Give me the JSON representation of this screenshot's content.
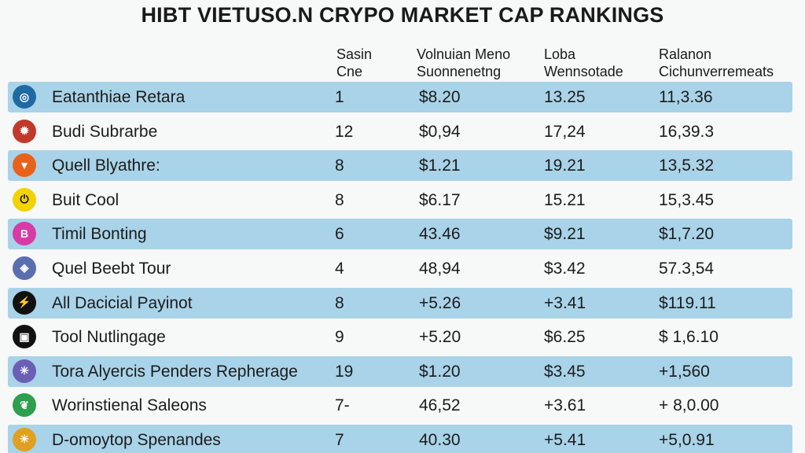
{
  "title": "HIBT VIETUSO.N CRYPO MARKET CAP RANKINGS",
  "headers": [
    {
      "line1": "Sasin",
      "line2": "Cne"
    },
    {
      "line1": "Volnuian Meno",
      "line2": "Suonnenetng"
    },
    {
      "line1": "Loba",
      "line2": "Wennsotade"
    },
    {
      "line1": "Ralanon",
      "line2": "Cichunverremeats"
    }
  ],
  "rows": [
    {
      "icon": "globe-coin-icon",
      "icon_color": "#1f6aa5",
      "name": "Eatanthiae Retara",
      "rank": "1",
      "volume": "$8.20",
      "loba": "13.25",
      "relation": "11,3.36",
      "shaded": true
    },
    {
      "icon": "gear-coin-icon",
      "icon_color": "#c0392b",
      "name": "Budi Subrarbe",
      "rank": "12",
      "volume": "$0,94",
      "loba": "17,24",
      "relation": "16,39.3",
      "shaded": false
    },
    {
      "icon": "flame-coin-icon",
      "icon_color": "#e8621b",
      "name": "Quell Blyathre:",
      "rank": "8",
      "volume": "$1.21",
      "loba": "19.21",
      "relation": "13,5.32",
      "shaded": true
    },
    {
      "icon": "power-coin-icon",
      "icon_color": "#f2d200",
      "name": "Buit Cool",
      "rank": "8",
      "volume": "$6.17",
      "loba": "15.21",
      "relation": "15,3.45",
      "shaded": false
    },
    {
      "icon": "b-coin-icon",
      "icon_color": "#d63ba6",
      "name": "Timil Bonting",
      "rank": "6",
      "volume": "43.46",
      "loba": "$9.21",
      "relation": "$1,7.20",
      "shaded": true
    },
    {
      "icon": "shield-coin-icon",
      "icon_color": "#5b6fb0",
      "name": "Quel Beebt Tour",
      "rank": "4",
      "volume": "48,94",
      "loba": "$3.42",
      "relation": "57.3,54",
      "shaded": false
    },
    {
      "icon": "lightning-coin-icon",
      "icon_color": "#111111",
      "name": "All Dacicial Payinot",
      "rank": "8",
      "volume": "+5.26",
      "loba": "+3.41",
      "relation": "$119.11",
      "shaded": true
    },
    {
      "icon": "cube-coin-icon",
      "icon_color": "#111111",
      "name": "Tool Nutlingage",
      "rank": "9",
      "volume": "+5.20",
      "loba": "$6.25",
      "relation": "$ 1,6.10",
      "shaded": false
    },
    {
      "icon": "network-coin-icon",
      "icon_color": "#6a5fb5",
      "name": "Tora Alyercis Penders Repherage",
      "rank": "19",
      "volume": "$1.20",
      "loba": "$3.45",
      "relation": "+1,560",
      "shaded": true
    },
    {
      "icon": "leaf-coin-icon",
      "icon_color": "#2e9e4f",
      "name": "Worinstienal Saleons",
      "rank": "7-",
      "volume": "46,52",
      "loba": "+3.61",
      "relation": "+ 8,0.00",
      "shaded": false
    },
    {
      "icon": "sun-coin-icon",
      "icon_color": "#e0a020",
      "name": "D-omoytop Spenandes",
      "rank": "7",
      "volume": "40.30",
      "loba": "+5.41",
      "relation": "+5,0.91",
      "shaded": true
    }
  ]
}
